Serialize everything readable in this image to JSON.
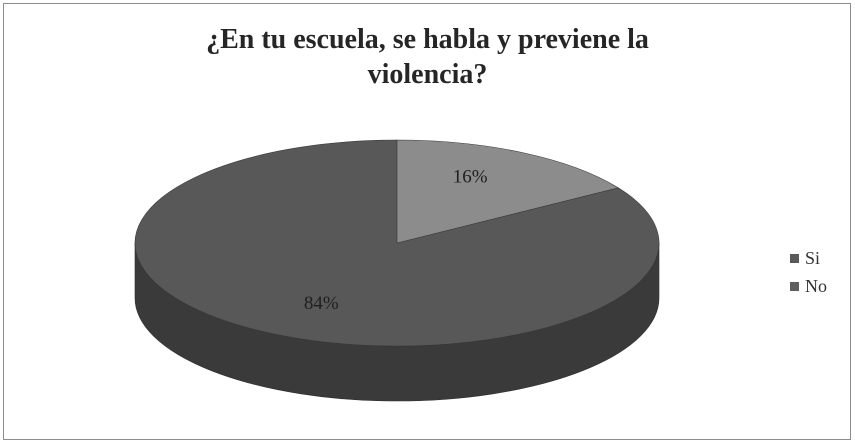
{
  "chart_data": {
    "type": "pie",
    "title_lines": [
      "¿En tu escuela, se habla y previene la",
      "violencia?"
    ],
    "categories": [
      "Si",
      "No"
    ],
    "values": [
      84,
      16
    ],
    "data_labels": [
      "84%",
      "16%"
    ],
    "legend": {
      "placement": "right",
      "entries": [
        "Si",
        "No"
      ]
    },
    "colors": {
      "Si": {
        "top": "#585858",
        "side": "#3a3a3a",
        "swatch": "#5a5a5a"
      },
      "No": {
        "top": "#8c8c8c",
        "side": "#6a6a6a",
        "swatch": "#5f5f5f"
      }
    },
    "style": "3d"
  }
}
